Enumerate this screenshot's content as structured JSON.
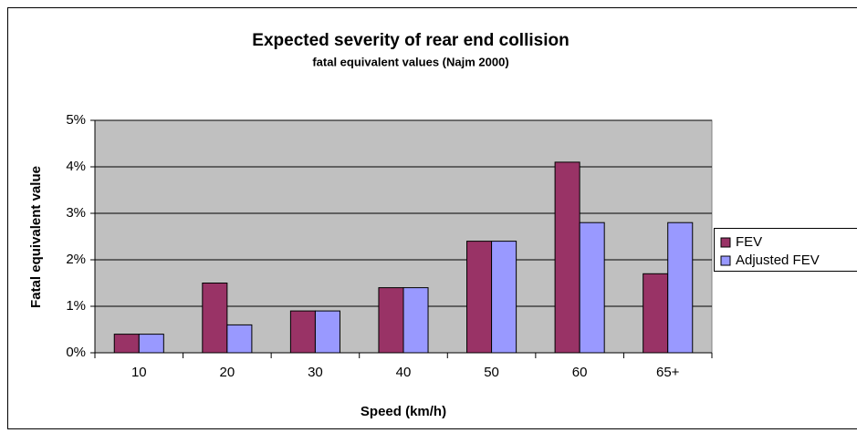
{
  "chart_data": {
    "type": "bar",
    "title": "Expected severity of rear end collision",
    "subtitle": "fatal equivalent values (Najm 2000)",
    "x_label": "Speed (km/h)",
    "y_label": "Fatal equivalent value",
    "categories": [
      "10",
      "20",
      "30",
      "40",
      "50",
      "60",
      "65+"
    ],
    "series": [
      {
        "name": "FEV",
        "color": "#993366",
        "values": [
          0.4,
          1.5,
          0.9,
          1.4,
          2.4,
          4.1,
          1.7
        ]
      },
      {
        "name": "Adjusted FEV",
        "color": "#9999ff",
        "values": [
          0.4,
          0.6,
          0.9,
          1.4,
          2.4,
          2.8,
          2.8
        ]
      }
    ],
    "ylim": [
      0,
      5
    ],
    "yticks": [
      {
        "value": 0,
        "label": "0%"
      },
      {
        "value": 1,
        "label": "1%"
      },
      {
        "value": 2,
        "label": "2%"
      },
      {
        "value": 3,
        "label": "3%"
      },
      {
        "value": 4,
        "label": "4%"
      },
      {
        "value": 5,
        "label": "5%"
      }
    ],
    "grid": true,
    "legend": "right"
  }
}
